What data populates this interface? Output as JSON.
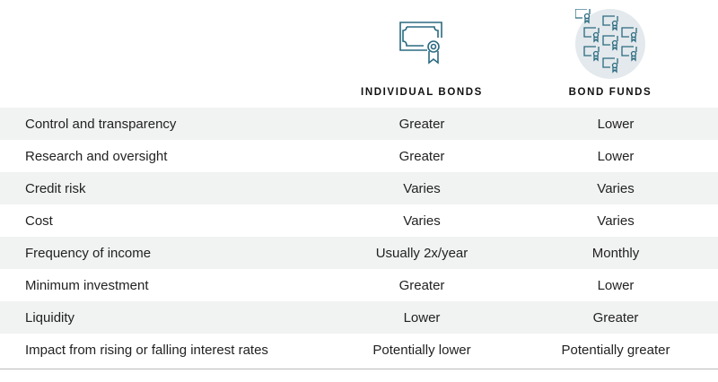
{
  "colors": {
    "icon_stroke": "#2a6a80",
    "icon_circle": "#e3e9ec",
    "stripe": "#f1f2f2"
  },
  "icons": {
    "individual": "certificate-icon",
    "funds": "multiple-certificates-icon"
  },
  "headers": {
    "col1": "INDIVIDUAL BONDS",
    "col2": "BOND FUNDS"
  },
  "rows": [
    {
      "label": "Control and transparency",
      "individual": "Greater",
      "funds": "Lower"
    },
    {
      "label": "Research and oversight",
      "individual": "Greater",
      "funds": "Lower"
    },
    {
      "label": "Credit risk",
      "individual": "Varies",
      "funds": "Varies"
    },
    {
      "label": "Cost",
      "individual": "Varies",
      "funds": "Varies"
    },
    {
      "label": "Frequency of income",
      "individual": "Usually 2x/year",
      "funds": "Monthly"
    },
    {
      "label": "Minimum investment",
      "individual": "Greater",
      "funds": "Lower"
    },
    {
      "label": "Liquidity",
      "individual": "Lower",
      "funds": "Greater"
    },
    {
      "label": "Impact from rising or falling interest rates",
      "individual": "Potentially lower",
      "funds": "Potentially greater"
    }
  ]
}
